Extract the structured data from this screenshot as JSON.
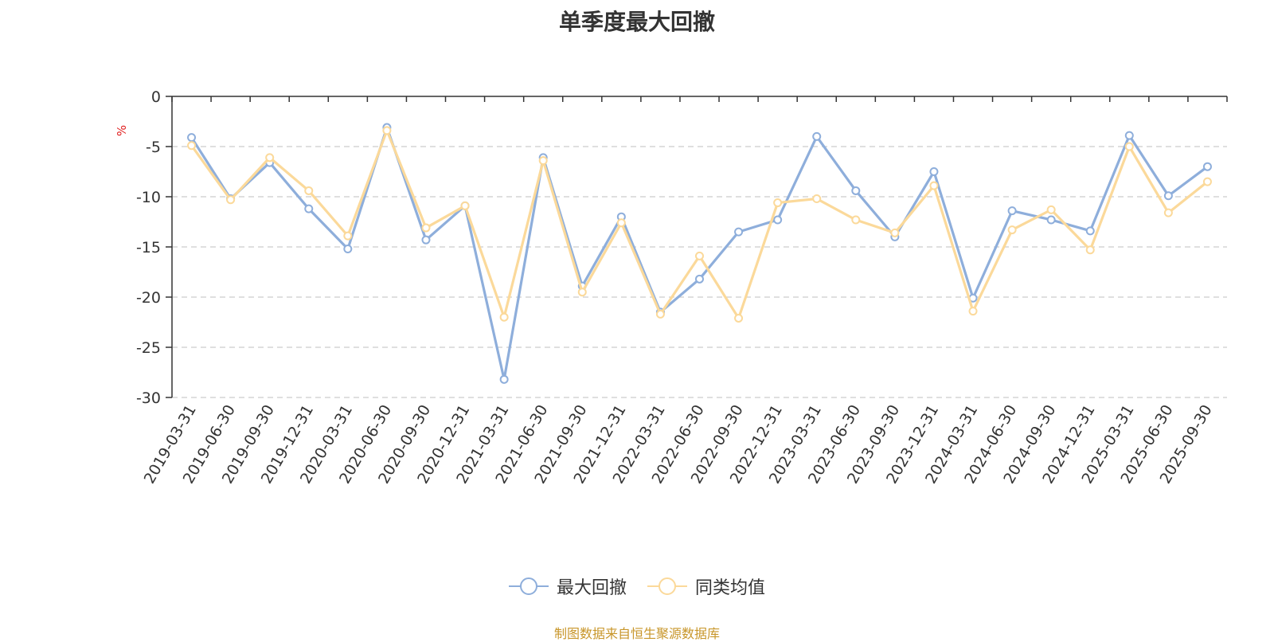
{
  "chart_data": {
    "type": "line",
    "title": "单季度最大回撤",
    "ylabel": "%",
    "ylim": [
      -30,
      0
    ],
    "yticks": [
      0,
      -5,
      -10,
      -15,
      -20,
      -25,
      -30
    ],
    "grid": true,
    "legend_position": "bottom",
    "categories": [
      "2019-03-31",
      "2019-06-30",
      "2019-09-30",
      "2019-12-31",
      "2020-03-31",
      "2020-06-30",
      "2020-09-30",
      "2020-12-31",
      "2021-03-31",
      "2021-06-30",
      "2021-09-30",
      "2021-12-31",
      "2022-03-31",
      "2022-06-30",
      "2022-09-30",
      "2022-12-31",
      "2023-03-31",
      "2023-06-30",
      "2023-09-30",
      "2023-12-31",
      "2024-03-31",
      "2024-06-30",
      "2024-09-30",
      "2024-12-31",
      "2025-03-31",
      "2025-06-30",
      "2025-09-30"
    ],
    "series": [
      {
        "name": "最大回撤",
        "color": "#8eaedb",
        "values": [
          -4.1,
          -10.2,
          -6.6,
          -11.2,
          -15.2,
          -3.1,
          -14.3,
          -10.9,
          -28.2,
          -6.1,
          -18.9,
          -12.0,
          -21.5,
          -18.2,
          -13.5,
          -12.3,
          -4.0,
          -9.4,
          -14.0,
          -7.5,
          -20.1,
          -11.4,
          -12.3,
          -13.4,
          -3.9,
          -9.9,
          -7.0
        ]
      },
      {
        "name": "同类均值",
        "color": "#fbd99a",
        "values": [
          -4.9,
          -10.3,
          -6.1,
          -9.4,
          -13.9,
          -3.4,
          -13.1,
          -10.9,
          -22.0,
          -6.4,
          -19.5,
          -12.6,
          -21.7,
          -15.9,
          -22.1,
          -10.6,
          -10.2,
          -12.3,
          -13.6,
          -8.9,
          -21.4,
          -13.3,
          -11.3,
          -15.3,
          -5.0,
          -11.6,
          -8.5
        ]
      }
    ]
  },
  "source_note": "制图数据来自恒生聚源数据库"
}
